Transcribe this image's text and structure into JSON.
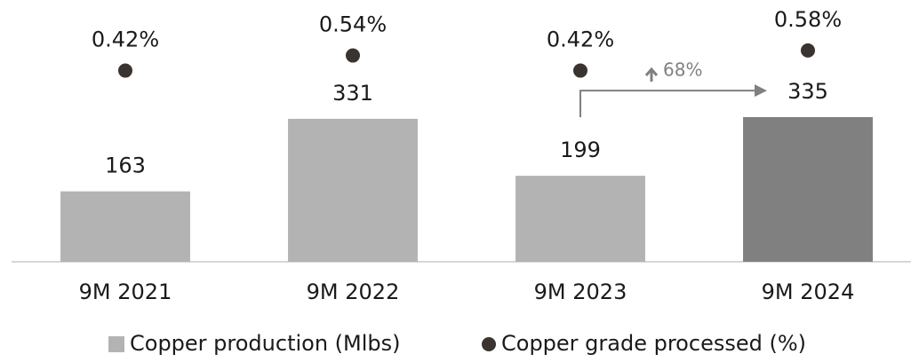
{
  "chart_data": {
    "type": "bar",
    "categories": [
      "9M 2021",
      "9M 2022",
      "9M 2023",
      "9M 2024"
    ],
    "series": [
      {
        "name": "Copper production (Mlbs)",
        "type": "bar",
        "colors": [
          "#b3b3b3",
          "#b3b3b3",
          "#b3b3b3",
          "#808080"
        ],
        "color": "#b3b3b3",
        "values": [
          163,
          331,
          199,
          335
        ]
      },
      {
        "name": "Copper grade processed (%)",
        "type": "dot",
        "axis": "y2",
        "color": "#3a3330",
        "values": [
          0.42,
          0.54,
          0.42,
          0.58
        ],
        "value_labels": [
          "0.42%",
          "0.54%",
          "0.42%",
          "0.58%"
        ]
      }
    ],
    "ylim": [
      0,
      600
    ],
    "y2lim": [
      -1.1,
      0.96
    ],
    "annotations": [
      {
        "text": "68%"
      }
    ]
  }
}
